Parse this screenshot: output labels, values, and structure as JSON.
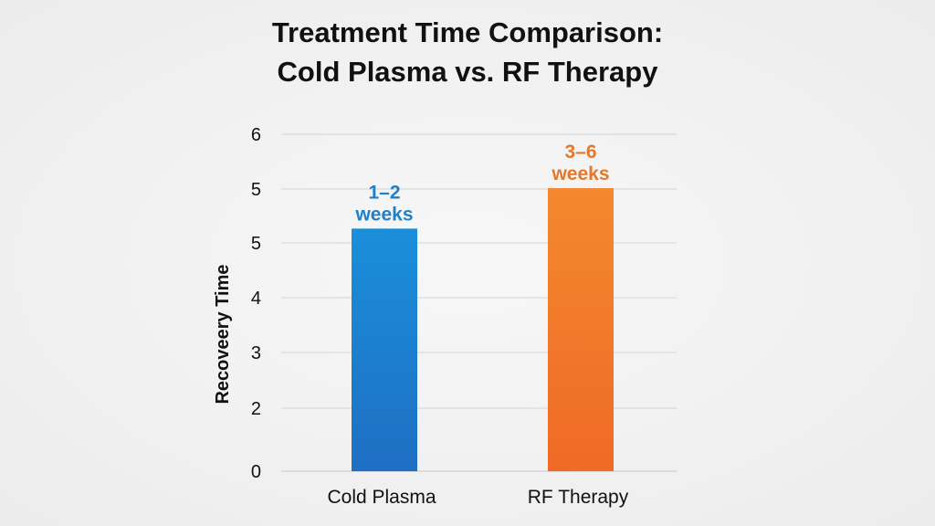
{
  "chart_data": {
    "type": "bar",
    "title_line1": "Treatment Time Comparison:",
    "title_line2": "Cold Plasma vs. RF Therapy",
    "ylabel": "Recoveery Time",
    "xlabel": "",
    "y_ticks": [
      "0",
      "2",
      "3",
      "4",
      "5",
      "5",
      "6"
    ],
    "categories": [
      "Cold Plasma",
      "RF Therapy"
    ],
    "bar_fraction_of_axis": [
      0.72,
      0.84
    ],
    "bar_labels": [
      {
        "line1": "1–2",
        "line2": "weeks"
      },
      {
        "line1": "3–6",
        "line2": "weeks"
      }
    ],
    "colors": {
      "cold_plasma_top": "#1a8fd9",
      "cold_plasma_bottom": "#1f6fc4",
      "rf_top": "#f4882e",
      "rf_bottom": "#ef6a26",
      "cold_plasma_label": "#1f7fc9",
      "rf_label": "#e4782a",
      "grid": "#d4d4d4"
    },
    "grid": true,
    "legend": "none"
  }
}
